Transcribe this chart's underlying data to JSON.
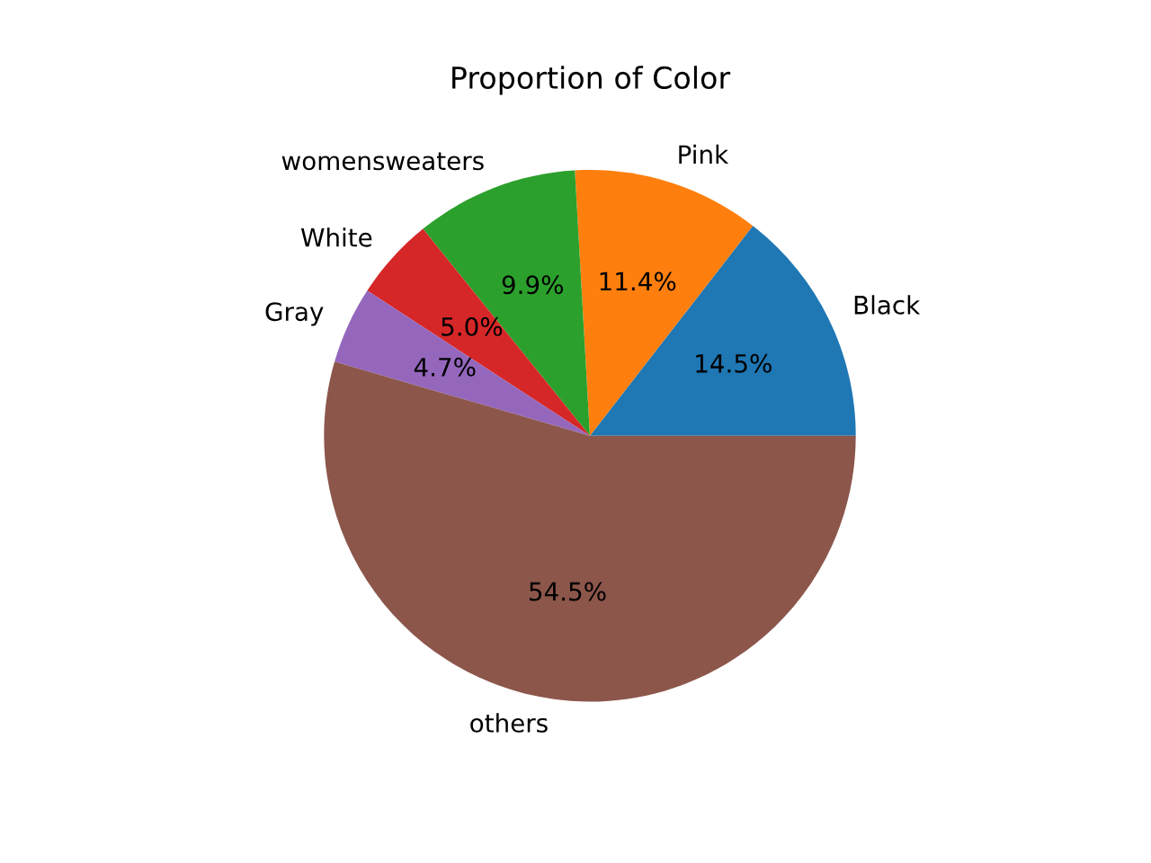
{
  "chart_data": {
    "type": "pie",
    "title": "Proportion of Color",
    "categories": [
      "Black",
      "Pink",
      "womensweaters",
      "White",
      "Gray",
      "others"
    ],
    "values": [
      14.5,
      11.4,
      9.9,
      5.0,
      4.7,
      54.5
    ],
    "colors": [
      "#1f77b4",
      "#ff7f0e",
      "#2ca02c",
      "#d62728",
      "#9467bd",
      "#8c564b"
    ],
    "value_labels": [
      "14.5%",
      "11.4%",
      "9.9%",
      "5.0%",
      "4.7%",
      "54.5%"
    ]
  }
}
